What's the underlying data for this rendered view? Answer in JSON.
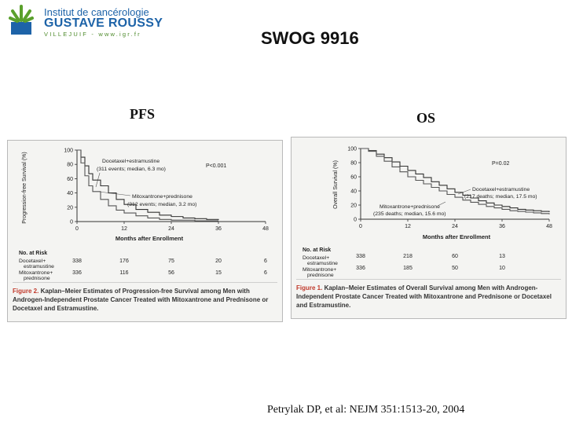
{
  "logo": {
    "line1": "Institut de cancérologie",
    "line2": "GUSTAVE ROUSSY",
    "line3": "VILLEJUIF - www.igr.fr"
  },
  "slide_title": "SWOG 9916",
  "pfs_label": "PFS",
  "os_label": "OS",
  "citation": "Petrylak DP, et al:  NEJM 351:1513-20, 2004",
  "charts": {
    "pfs": {
      "ylabel": "Progression-free Survival (%)",
      "xlabel": "Months after Enrollment",
      "pvalue": "P<0.001",
      "annot1_a": "Docetaxel+estramustine",
      "annot1_b": "(311 events; median, 6.3 mo)",
      "annot2_a": "Mitoxantrone+prednisone",
      "annot2_b": "(312 events; median, 3.2 mo)",
      "risk_title": "No. at Risk",
      "risk_row1_label_a": "Docetaxel+",
      "risk_row1_label_b": "estramustine",
      "risk_row2_label_a": "Mitoxantrone+",
      "risk_row2_label_b": "prednisone",
      "fig_label": "Figure 2.",
      "caption_rest": " Kaplan–Meier Estimates of Progression-free Survival among Men with Androgen-Independent Prostate Cancer Treated with Mitoxantrone and Prednisone or Docetaxel and Estramustine."
    },
    "os": {
      "ylabel": "Overall Survival (%)",
      "xlabel": "Months after Enrollment",
      "pvalue": "P=0.02",
      "annot1_a": "Docetaxel+estramustine",
      "annot1_b": "(217 deaths; median, 17.5 mo)",
      "annot2_a": "Mitoxantrone+prednisone",
      "annot2_b": "(235 deaths; median, 15.6 mo)",
      "risk_title": "No. at Risk",
      "risk_row1_label_a": "Docetaxel+",
      "risk_row1_label_b": "estramustine",
      "risk_row2_label_a": "Mitoxantrone+",
      "risk_row2_label_b": "prednisone",
      "fig_label": "Figure 1.",
      "caption_rest": " Kaplan–Meier Estimates of Overall Survival among Men with Androgen-Independent Prostate Cancer Treated with Mitoxantrone and Prednisone or Docetaxel and Estramustine."
    }
  },
  "chart_data": [
    {
      "type": "line",
      "title": "",
      "xlabel": "Months after Enrollment",
      "ylabel": "Progression-free Survival (%)",
      "xlim": [
        0,
        48
      ],
      "ylim": [
        0,
        100
      ],
      "xticks": [
        0,
        12,
        24,
        36,
        48
      ],
      "yticks": [
        0,
        20,
        40,
        60,
        80,
        100
      ],
      "series": [
        {
          "name": "Docetaxel+estramustine",
          "x": [
            0,
            1,
            2,
            3,
            4,
            6,
            8,
            10,
            12,
            15,
            18,
            21,
            24,
            27,
            30,
            33,
            36
          ],
          "y": [
            100,
            90,
            78,
            67,
            58,
            50,
            40,
            31,
            24,
            17,
            13,
            9,
            7,
            5,
            4,
            3,
            2
          ]
        },
        {
          "name": "Mitoxantrone+prednisone",
          "x": [
            0,
            1,
            2,
            3,
            4,
            6,
            8,
            10,
            12,
            15,
            18,
            21,
            24,
            27,
            30,
            33,
            36
          ],
          "y": [
            100,
            82,
            64,
            50,
            42,
            31,
            22,
            16,
            12,
            8,
            5,
            3,
            2,
            2,
            1,
            1,
            1
          ]
        }
      ],
      "risk_table": {
        "times": [
          0,
          12,
          24,
          36,
          48
        ],
        "rows": [
          {
            "name": "Docetaxel+ estramustine",
            "values": [
              338,
              176,
              75,
              20,
              6
            ]
          },
          {
            "name": "Mitoxantrone+ prednisone",
            "values": [
              336,
              116,
              56,
              15,
              6
            ]
          }
        ]
      }
    },
    {
      "type": "line",
      "title": "",
      "xlabel": "Months after Enrollment",
      "ylabel": "Overall Survival (%)",
      "xlim": [
        0,
        48
      ],
      "ylim": [
        0,
        100
      ],
      "xticks": [
        0,
        12,
        24,
        36,
        48
      ],
      "yticks": [
        0,
        20,
        40,
        60,
        80,
        100
      ],
      "series": [
        {
          "name": "Docetaxel+estramustine",
          "x": [
            0,
            2,
            4,
            6,
            8,
            10,
            12,
            14,
            16,
            18,
            20,
            22,
            24,
            26,
            28,
            30,
            32,
            34,
            36,
            38,
            40,
            42,
            44,
            46,
            48
          ],
          "y": [
            100,
            97,
            92,
            87,
            81,
            75,
            69,
            64,
            59,
            53,
            48,
            43,
            38,
            34,
            30,
            26,
            23,
            20,
            18,
            16,
            14,
            13,
            12,
            11,
            10
          ]
        },
        {
          "name": "Mitoxantrone+prednisone",
          "x": [
            0,
            2,
            4,
            6,
            8,
            10,
            12,
            14,
            16,
            18,
            20,
            22,
            24,
            26,
            28,
            30,
            32,
            34,
            36,
            38,
            40,
            42,
            44,
            46,
            48
          ],
          "y": [
            100,
            96,
            89,
            82,
            74,
            67,
            60,
            55,
            50,
            45,
            40,
            35,
            31,
            27,
            24,
            21,
            18,
            16,
            14,
            12,
            11,
            10,
            9,
            8,
            7
          ]
        }
      ],
      "risk_table": {
        "times": [
          0,
          12,
          24,
          36
        ],
        "rows": [
          {
            "name": "Docetaxel+ estramustine",
            "values": [
              338,
              218,
              60,
              13
            ]
          },
          {
            "name": "Mitoxantrone+ prednisone",
            "values": [
              336,
              185,
              50,
              10
            ]
          }
        ]
      }
    }
  ]
}
